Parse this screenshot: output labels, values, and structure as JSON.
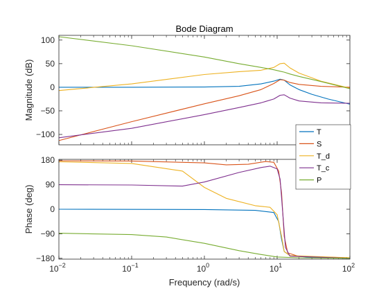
{
  "chart_data": {
    "type": "line",
    "title": "Bode Diagram",
    "xlabel": "Frequency  (rad/s)",
    "x_scale": "log",
    "xlim": [
      0.01,
      100
    ],
    "x_ticks": [
      {
        "value": 0.01,
        "base": "10",
        "exp": "-2"
      },
      {
        "value": 0.1,
        "base": "10",
        "exp": "-1"
      },
      {
        "value": 1,
        "base": "10",
        "exp": "0"
      },
      {
        "value": 10,
        "base": "10",
        "exp": "1"
      },
      {
        "value": 100,
        "base": "10",
        "exp": "2"
      }
    ],
    "grid": false,
    "legend_position": "inside right, between panels",
    "legend": [
      "T",
      "S",
      "T_d",
      "T_c",
      "P"
    ],
    "colors": {
      "T": "#0072BD",
      "S": "#D95319",
      "T_d": "#EDB120",
      "T_c": "#7E2F8E",
      "P": "#77AC30"
    },
    "panels": [
      {
        "name": "magnitude",
        "ylabel": "Magnitude (dB)",
        "ylim": [
          -122,
          110
        ],
        "yticks": [
          -100,
          -50,
          0,
          50,
          100
        ],
        "series": [
          {
            "name": "T",
            "points": [
              [
                0.01,
                0
              ],
              [
                0.1,
                0
              ],
              [
                1,
                0.5
              ],
              [
                3,
                2
              ],
              [
                6,
                7
              ],
              [
                9,
                13
              ],
              [
                11,
                17
              ],
              [
                12.5,
                15
              ],
              [
                15,
                5
              ],
              [
                20,
                -5
              ],
              [
                30,
                -15
              ],
              [
                50,
                -25
              ],
              [
                100,
                -36
              ]
            ]
          },
          {
            "name": "S",
            "points": [
              [
                0.01,
                -113
              ],
              [
                0.1,
                -73
              ],
              [
                1,
                -35
              ],
              [
                3,
                -18
              ],
              [
                6,
                -5
              ],
              [
                9,
                8
              ],
              [
                11,
                16
              ],
              [
                12.5,
                15
              ],
              [
                15,
                10
              ],
              [
                20,
                6
              ],
              [
                40,
                2
              ],
              [
                100,
                0
              ]
            ]
          },
          {
            "name": "T_d",
            "points": [
              [
                0.01,
                -7
              ],
              [
                0.1,
                7
              ],
              [
                1,
                27
              ],
              [
                3,
                33
              ],
              [
                6,
                36
              ],
              [
                9,
                42
              ],
              [
                11,
                50
              ],
              [
                12.5,
                51
              ],
              [
                15,
                41
              ],
              [
                20,
                30
              ],
              [
                40,
                13
              ],
              [
                100,
                -2
              ]
            ]
          },
          {
            "name": "T_c",
            "points": [
              [
                0.01,
                -107
              ],
              [
                0.1,
                -87
              ],
              [
                1,
                -58
              ],
              [
                3,
                -43
              ],
              [
                6,
                -33
              ],
              [
                9,
                -25
              ],
              [
                11,
                -17
              ],
              [
                12.5,
                -16
              ],
              [
                15,
                -23
              ],
              [
                20,
                -29
              ],
              [
                40,
                -33
              ],
              [
                100,
                -34
              ]
            ]
          },
          {
            "name": "P",
            "points": [
              [
                0.01,
                107
              ],
              [
                0.1,
                88
              ],
              [
                1,
                64
              ],
              [
                3,
                50
              ],
              [
                6,
                42
              ],
              [
                9,
                37
              ],
              [
                11,
                34
              ],
              [
                12.5,
                32
              ],
              [
                15,
                28
              ],
              [
                20,
                23
              ],
              [
                40,
                12
              ],
              [
                100,
                -3
              ]
            ]
          }
        ]
      },
      {
        "name": "phase",
        "ylabel": "Phase (deg)",
        "ylim": [
          -183,
          183
        ],
        "yticks": [
          -180,
          -90,
          0,
          90,
          180
        ],
        "series": [
          {
            "name": "T",
            "points": [
              [
                0.01,
                0
              ],
              [
                1,
                -1
              ],
              [
                5,
                -4
              ],
              [
                9,
                -12
              ],
              [
                10.5,
                -45
              ],
              [
                11.5,
                -110
              ],
              [
                12.5,
                -155
              ],
              [
                15,
                -170
              ],
              [
                30,
                -177
              ],
              [
                100,
                -180
              ]
            ]
          },
          {
            "name": "S",
            "points": [
              [
                0.01,
                178
              ],
              [
                0.1,
                177
              ],
              [
                1,
                170
              ],
              [
                2,
                163
              ],
              [
                4,
                165
              ],
              [
                7,
                175
              ],
              [
                9,
                172
              ],
              [
                10.5,
                140
              ],
              [
                11.5,
                60
              ],
              [
                12.5,
                -100
              ],
              [
                14,
                -160
              ],
              [
                20,
                -173
              ],
              [
                100,
                -178
              ]
            ]
          },
          {
            "name": "T_d",
            "points": [
              [
                0.01,
                174
              ],
              [
                0.1,
                168
              ],
              [
                0.5,
                140
              ],
              [
                1,
                80
              ],
              [
                2,
                40
              ],
              [
                5,
                13
              ],
              [
                8,
                7
              ],
              [
                10,
                -20
              ],
              [
                11.5,
                -100
              ],
              [
                12.5,
                -155
              ],
              [
                15,
                -170
              ],
              [
                100,
                -178
              ]
            ]
          },
          {
            "name": "T_c",
            "points": [
              [
                0.01,
                90
              ],
              [
                0.1,
                89
              ],
              [
                0.5,
                85
              ],
              [
                1,
                100
              ],
              [
                3,
                135
              ],
              [
                6,
                153
              ],
              [
                8,
                158
              ],
              [
                10,
                148
              ],
              [
                11,
                110
              ],
              [
                12,
                -20
              ],
              [
                13,
                -140
              ],
              [
                15,
                -172
              ],
              [
                100,
                -180
              ]
            ]
          },
          {
            "name": "P",
            "points": [
              [
                0.01,
                -88
              ],
              [
                0.1,
                -93
              ],
              [
                0.3,
                -102
              ],
              [
                1,
                -125
              ],
              [
                3,
                -152
              ],
              [
                6,
                -166
              ],
              [
                10,
                -175
              ],
              [
                20,
                -178
              ],
              [
                100,
                -180
              ]
            ]
          }
        ]
      }
    ]
  }
}
